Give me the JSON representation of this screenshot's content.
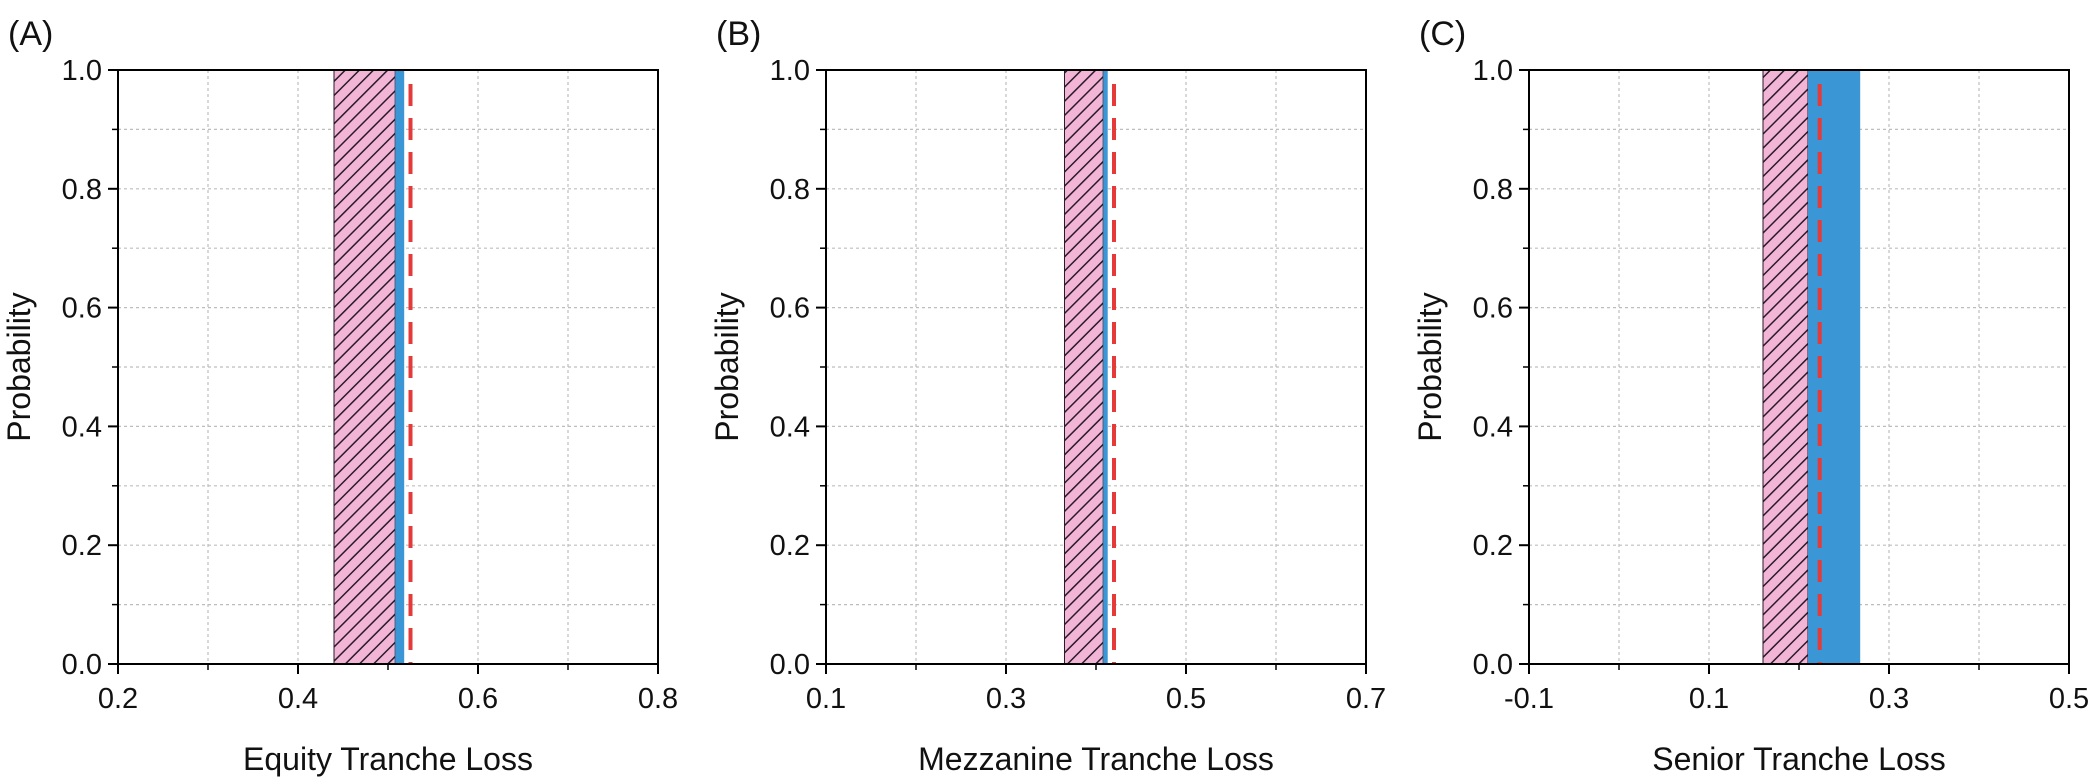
{
  "chart_data": [
    {
      "panel_label": "(A)",
      "type": "interval",
      "xlabel": "Equity Tranche Loss",
      "ylabel": "Probability",
      "xlim": [
        0.2,
        0.8
      ],
      "ylim": [
        0.0,
        1.0
      ],
      "x_ticks": [
        0.2,
        0.4,
        0.6,
        0.8
      ],
      "x_tick_labels": [
        "0.2",
        "0.4",
        "0.6",
        "0.8"
      ],
      "x_minor_ticks": [
        0.3,
        0.5,
        0.7
      ],
      "y_ticks": [
        0.0,
        0.2,
        0.4,
        0.6,
        0.8,
        1.0
      ],
      "y_tick_labels": [
        "0.0",
        "0.2",
        "0.4",
        "0.6",
        "0.8",
        "1.0"
      ],
      "y_minor_ticks": [
        0.1,
        0.3,
        0.5,
        0.7,
        0.9
      ],
      "grid": true,
      "hatched_interval": [
        0.44,
        0.508
      ],
      "blue_interval": [
        0.508,
        0.518
      ],
      "dashed_line_x": 0.525
    },
    {
      "panel_label": "(B)",
      "type": "interval",
      "xlabel": "Mezzanine Tranche Loss",
      "ylabel": "Probability",
      "xlim": [
        0.1,
        0.7
      ],
      "ylim": [
        0.0,
        1.0
      ],
      "x_ticks": [
        0.1,
        0.3,
        0.5,
        0.7
      ],
      "x_tick_labels": [
        "0.1",
        "0.3",
        "0.5",
        "0.7"
      ],
      "x_minor_ticks": [
        0.2,
        0.4,
        0.6
      ],
      "y_ticks": [
        0.0,
        0.2,
        0.4,
        0.6,
        0.8,
        1.0
      ],
      "y_tick_labels": [
        "0.0",
        "0.2",
        "0.4",
        "0.6",
        "0.8",
        "1.0"
      ],
      "y_minor_ticks": [
        0.1,
        0.3,
        0.5,
        0.7,
        0.9
      ],
      "grid": true,
      "hatched_interval": [
        0.365,
        0.408
      ],
      "blue_interval": [
        0.408,
        0.413
      ],
      "dashed_line_x": 0.42
    },
    {
      "panel_label": "(C)",
      "type": "interval",
      "xlabel": "Senior Tranche Loss",
      "ylabel": "Probability",
      "xlim": [
        -0.1,
        0.5
      ],
      "ylim": [
        0.0,
        1.0
      ],
      "x_ticks": [
        -0.1,
        0.1,
        0.3,
        0.5
      ],
      "x_tick_labels": [
        "-0.1",
        "0.1",
        "0.3",
        "0.5"
      ],
      "x_minor_ticks": [
        0.0,
        0.2,
        0.4
      ],
      "y_ticks": [
        0.0,
        0.2,
        0.4,
        0.6,
        0.8,
        1.0
      ],
      "y_tick_labels": [
        "0.0",
        "0.2",
        "0.4",
        "0.6",
        "0.8",
        "1.0"
      ],
      "y_minor_ticks": [
        0.1,
        0.3,
        0.5,
        0.7,
        0.9
      ],
      "grid": true,
      "hatched_interval": [
        0.16,
        0.21
      ],
      "blue_interval": [
        0.21,
        0.268
      ],
      "dashed_line_x": 0.223
    }
  ],
  "colors": {
    "hatch_fill": "#f2b5d6",
    "hatch_line": "#2a1a2a",
    "blue_band": "#3a96d4",
    "dashed_line": "#e53a3a",
    "grid": "#bdbdbd",
    "axis": "#000000"
  }
}
